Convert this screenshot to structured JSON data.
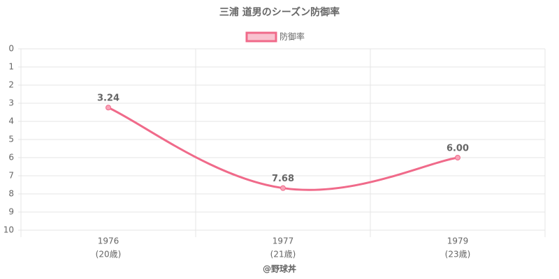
{
  "chart_data": {
    "type": "line",
    "title": "三浦 道男のシーズン防御率",
    "categories": [
      "1976",
      "1977",
      "1979"
    ],
    "category_sublabels": [
      "(20歳)",
      "(21歳)",
      "(23歳)"
    ],
    "series": [
      {
        "name": "防御率",
        "color": "#f06a8a",
        "values": [
          3.24,
          7.68,
          6.0
        ],
        "value_labels": [
          "3.24",
          "7.68",
          "6.00"
        ]
      }
    ],
    "ylim": [
      0,
      10
    ],
    "y_reversed": true,
    "yticks": [
      0,
      1,
      2,
      3,
      4,
      5,
      6,
      7,
      8,
      9,
      10
    ],
    "grid": true,
    "legend": "top",
    "credit": "@野球丼"
  }
}
